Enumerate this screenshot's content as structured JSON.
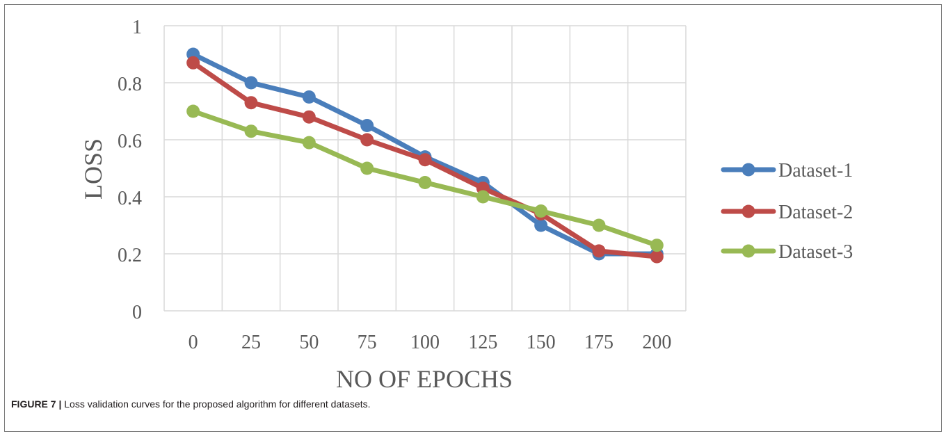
{
  "chart_data": {
    "type": "line",
    "xlabel": "NO OF EPOCHS",
    "ylabel": "LOSS",
    "categories": [
      "0",
      "25",
      "50",
      "75",
      "100",
      "125",
      "150",
      "175",
      "200"
    ],
    "y_ticks": [
      "0",
      "0.2",
      "0.4",
      "0.6",
      "0.8",
      "1"
    ],
    "ylim": [
      0,
      1
    ],
    "grid": true,
    "legend_position": "right",
    "series": [
      {
        "name": "Dataset-1",
        "color": "#4a7ebb",
        "values": [
          0.9,
          0.8,
          0.75,
          0.65,
          0.54,
          0.45,
          0.3,
          0.2,
          0.2
        ]
      },
      {
        "name": "Dataset-2",
        "color": "#be4b48",
        "values": [
          0.87,
          0.73,
          0.68,
          0.6,
          0.53,
          0.43,
          0.34,
          0.21,
          0.19
        ]
      },
      {
        "name": "Dataset-3",
        "color": "#98b954",
        "values": [
          0.7,
          0.63,
          0.59,
          0.5,
          0.45,
          0.4,
          0.35,
          0.3,
          0.23
        ]
      }
    ]
  },
  "caption": {
    "label": "FIGURE 7 |",
    "text": " Loss validation curves for the proposed algorithm for different datasets."
  }
}
